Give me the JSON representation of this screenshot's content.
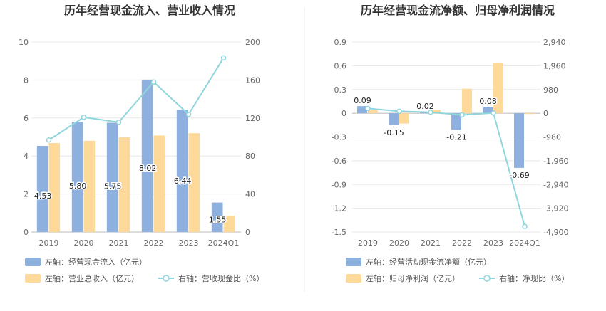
{
  "chart_data": [
    {
      "type": "bar",
      "title": "历年经营现金流入、营业收入情况",
      "categories": [
        "2019",
        "2020",
        "2021",
        "2022",
        "2023",
        "2024Q1"
      ],
      "left_axis": {
        "min": 0,
        "max": 10,
        "ticks": [
          "0",
          "2",
          "4",
          "6",
          "8",
          "10"
        ]
      },
      "right_axis": {
        "min": 0,
        "max": 200,
        "ticks": [
          "0",
          "40",
          "80",
          "120",
          "160",
          "200"
        ]
      },
      "series": [
        {
          "name": "左轴：经营现金流入（亿元）",
          "type": "bar",
          "axis": "left",
          "color": "#8eb0de",
          "values": [
            4.53,
            5.8,
            5.75,
            8.02,
            6.44,
            1.55
          ],
          "labels": [
            "4.53",
            "5.80",
            "5.75",
            "8.02",
            "6.44",
            "1.55"
          ]
        },
        {
          "name": "左轴：营业总收入（亿元）",
          "type": "bar",
          "axis": "left",
          "color": "#fdd99a",
          "values": [
            4.68,
            4.8,
            4.98,
            5.08,
            5.2,
            0.86
          ]
        },
        {
          "name": "右轴：营收现金比（%）",
          "type": "line",
          "axis": "right",
          "color": "#8fd6dd",
          "values": [
            96.8,
            120.8,
            115.5,
            157.9,
            123.8,
            183.2
          ]
        }
      ]
    },
    {
      "type": "bar",
      "title": "历年经营现金流净额、归母净利润情况",
      "categories": [
        "2019",
        "2020",
        "2021",
        "2022",
        "2023",
        "2024Q1"
      ],
      "left_axis": {
        "min": -1.5,
        "max": 0.9,
        "ticks": [
          "-1.5",
          "-1.2",
          "-0.9",
          "-0.6",
          "-0.3",
          "0",
          "0.3",
          "0.6",
          "0.9"
        ]
      },
      "right_axis": {
        "min": -4900,
        "max": 2940,
        "ticks": [
          "-4,900",
          "-3,920",
          "-2,940",
          "-1,960",
          "-980",
          "0",
          "980",
          "1,960",
          "2,940"
        ]
      },
      "series": [
        {
          "name": "左轴：经营活动现金流净额（亿元）",
          "type": "bar",
          "axis": "left",
          "color": "#8eb0de",
          "values": [
            0.09,
            -0.15,
            0.02,
            -0.21,
            0.08,
            -0.69
          ],
          "labels": [
            "0.09",
            "-0.15",
            "0.02",
            "-0.21",
            "0.08",
            "-0.69"
          ]
        },
        {
          "name": "左轴：归母净利润（亿元）",
          "type": "bar",
          "axis": "left",
          "color": "#fdd99a",
          "values": [
            0.04,
            -0.13,
            0.04,
            0.31,
            0.64,
            -0.01
          ]
        },
        {
          "name": "右轴：净现比（%）",
          "type": "line",
          "axis": "right",
          "color": "#8fd6dd",
          "values": [
            200,
            80,
            40,
            -70,
            10,
            -4670
          ]
        }
      ]
    }
  ]
}
